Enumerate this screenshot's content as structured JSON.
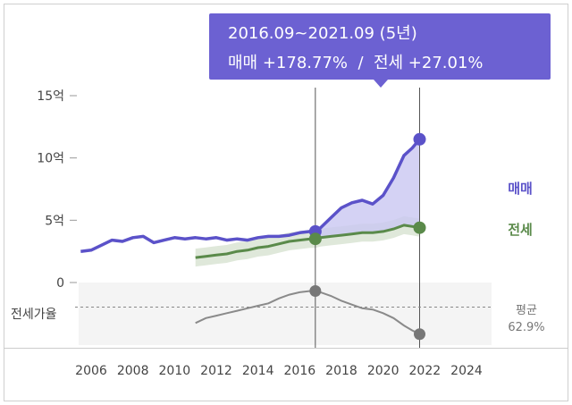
{
  "tooltip": {
    "period": "2016.09~2021.09 (5년)",
    "summary": "매매 +178.77%  /  전세 +27.01%",
    "color": "#6c61d2"
  },
  "legend": {
    "sale": "매매",
    "jeonse": "전세",
    "avg_label": "평균",
    "avg_value": "62.9%",
    "ratio_label": "전세가율"
  },
  "colors": {
    "sale": "#5b52c9",
    "sale_fill": "#c9c7f1",
    "jeonse": "#5a8a4a",
    "jeonse_range": "#dfe8da",
    "ratio": "#8a8a8a",
    "ratio_panel": "#f4f4f4"
  },
  "chart_data": {
    "type": "line",
    "x_ticks": [
      "2006",
      "2008",
      "2010",
      "2012",
      "2014",
      "2016",
      "2018",
      "2020",
      "2022",
      "2024"
    ],
    "xlim": [
      2005.4,
      2025.2
    ],
    "y_ticks": [
      "15억",
      "10억",
      "5억",
      "0"
    ],
    "ylim": [
      0,
      15
    ],
    "y_unit": "억",
    "grid": false,
    "selection": {
      "start": 2016.75,
      "end": 2021.75
    },
    "series": [
      {
        "name": "매매",
        "x": [
          2005.5,
          2006,
          2006.5,
          2007,
          2007.5,
          2008,
          2008.5,
          2009,
          2009.5,
          2010,
          2010.5,
          2011,
          2011.5,
          2012,
          2012.5,
          2013,
          2013.5,
          2014,
          2014.5,
          2015,
          2015.5,
          2016,
          2016.5,
          2016.75,
          2017,
          2017.5,
          2018,
          2018.5,
          2019,
          2019.5,
          2020,
          2020.5,
          2021,
          2021.4,
          2021.75
        ],
        "y": [
          2.5,
          2.6,
          3.0,
          3.4,
          3.3,
          3.6,
          3.7,
          3.2,
          3.4,
          3.6,
          3.5,
          3.6,
          3.5,
          3.6,
          3.4,
          3.5,
          3.4,
          3.6,
          3.7,
          3.7,
          3.8,
          4.0,
          4.1,
          4.1,
          4.4,
          5.2,
          6.0,
          6.4,
          6.6,
          6.3,
          7.0,
          8.4,
          10.2,
          10.8,
          11.5
        ]
      },
      {
        "name": "전세",
        "x": [
          2011,
          2011.5,
          2012,
          2012.5,
          2013,
          2013.5,
          2014,
          2014.5,
          2015,
          2015.5,
          2016,
          2016.5,
          2016.75,
          2017,
          2017.5,
          2018,
          2018.5,
          2019,
          2019.5,
          2020,
          2020.5,
          2021,
          2021.4,
          2021.75
        ],
        "y": [
          2.0,
          2.1,
          2.2,
          2.3,
          2.5,
          2.6,
          2.8,
          2.9,
          3.1,
          3.3,
          3.4,
          3.5,
          3.5,
          3.6,
          3.7,
          3.8,
          3.9,
          4.0,
          4.0,
          4.1,
          4.3,
          4.6,
          4.5,
          4.4
        ]
      }
    ],
    "ratio_series": {
      "x": [
        2011,
        2011.5,
        2012,
        2012.5,
        2013,
        2013.5,
        2014,
        2014.5,
        2015,
        2015.5,
        2016,
        2016.5,
        2016.75,
        2017,
        2017.5,
        2018,
        2018.5,
        2019,
        2019.5,
        2020,
        2020.5,
        2021,
        2021.4,
        2021.75
      ],
      "y": [
        50,
        54,
        56,
        58,
        60,
        62,
        64,
        66,
        70,
        73,
        75,
        76,
        76,
        75,
        72,
        68,
        65,
        62,
        61,
        58,
        54,
        48,
        44,
        41
      ],
      "avg": 62.9,
      "ylim": [
        35,
        80
      ]
    }
  }
}
